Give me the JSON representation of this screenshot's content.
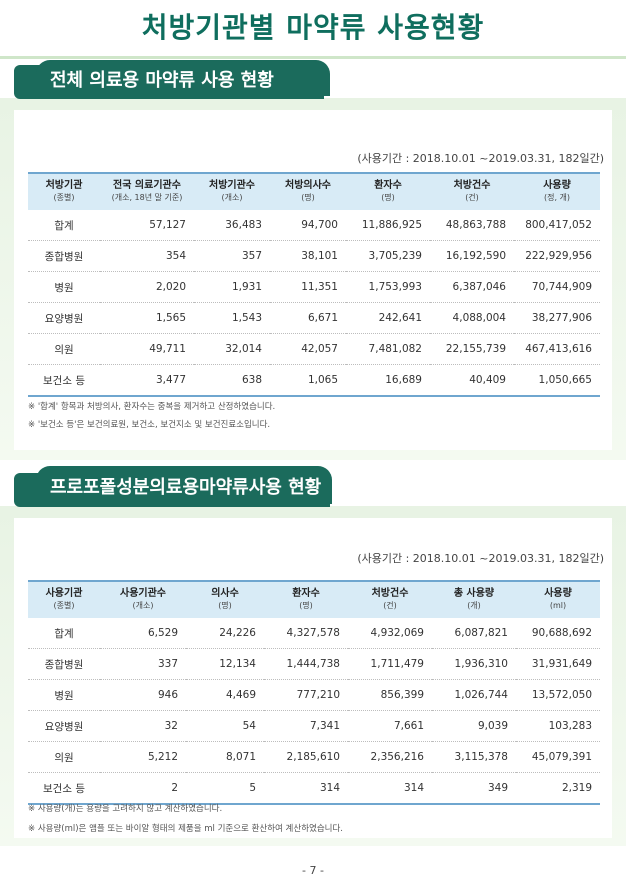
{
  "page": {
    "title": "처방기관별 마약류 사용현황",
    "page_number": "- 7 -"
  },
  "section1": {
    "heading": "전체 의료용 마약류 사용 현황",
    "period": "(사용기간 : 2018.10.01 ~2019.03.31, 182일간)",
    "headers": [
      {
        "label": "처방기관",
        "sub": "(종별)"
      },
      {
        "label": "전국 의료기관수",
        "sub": "(개소, 18년 말 기준)"
      },
      {
        "label": "처방기관수",
        "sub": "(개소)"
      },
      {
        "label": "처방의사수",
        "sub": "(명)"
      },
      {
        "label": "환자수",
        "sub": "(명)"
      },
      {
        "label": "처방건수",
        "sub": "(건)"
      },
      {
        "label": "사용량",
        "sub": "(정, 개)"
      }
    ],
    "rows": [
      [
        "합계",
        "57,127",
        "36,483",
        "94,700",
        "11,886,925",
        "48,863,788",
        "800,417,052"
      ],
      [
        "종합병원",
        "354",
        "357",
        "38,101",
        "3,705,239",
        "16,192,590",
        "222,929,956"
      ],
      [
        "병원",
        "2,020",
        "1,931",
        "11,351",
        "1,753,993",
        "6,387,046",
        "70,744,909"
      ],
      [
        "요양병원",
        "1,565",
        "1,543",
        "6,671",
        "242,641",
        "4,088,004",
        "38,277,906"
      ],
      [
        "의원",
        "49,711",
        "32,014",
        "42,057",
        "7,481,082",
        "22,155,739",
        "467,413,616"
      ],
      [
        "보건소 등",
        "3,477",
        "638",
        "1,065",
        "16,689",
        "40,409",
        "1,050,665"
      ]
    ],
    "notes": [
      "※ '합계' 항목과 처방의사, 환자수는 중복을 제거하고 산정하였습니다.",
      "※ '보건소 등'은 보건의료원, 보건소, 보건지소 및 보건진료소입니다."
    ]
  },
  "section2": {
    "heading": "프로포폴성분의료용마약류사용 현황",
    "period": "(사용기간 : 2018.10.01 ~2019.03.31, 182일간)",
    "headers": [
      {
        "label": "사용기관",
        "sub": "(종별)"
      },
      {
        "label": "사용기관수",
        "sub": "(개소)"
      },
      {
        "label": "의사수",
        "sub": "(명)"
      },
      {
        "label": "환자수",
        "sub": "(명)"
      },
      {
        "label": "처방건수",
        "sub": "(건)"
      },
      {
        "label": "총 사용량",
        "sub": "(개)"
      },
      {
        "label": "사용량",
        "sub": "(ml)"
      }
    ],
    "rows": [
      [
        "합계",
        "6,529",
        "24,226",
        "4,327,578",
        "4,932,069",
        "6,087,821",
        "90,688,692"
      ],
      [
        "종합병원",
        "337",
        "12,134",
        "1,444,738",
        "1,711,479",
        "1,936,310",
        "31,931,649"
      ],
      [
        "병원",
        "946",
        "4,469",
        "777,210",
        "856,399",
        "1,026,744",
        "13,572,050"
      ],
      [
        "요양병원",
        "32",
        "54",
        "7,341",
        "7,661",
        "9,039",
        "103,283"
      ],
      [
        "의원",
        "5,212",
        "8,071",
        "2,185,610",
        "2,356,216",
        "3,115,378",
        "45,079,391"
      ],
      [
        "보건소 등",
        "2",
        "5",
        "314",
        "314",
        "349",
        "2,319"
      ]
    ],
    "notes": [
      "※ 사용량(개)는 용량을 고려하지 않고 계산하였습니다.",
      "※ 사용량(ml)은 앰플 또는 바이알 형태의 제품을 ml 기준으로 환산하여 계산하였습니다."
    ]
  }
}
